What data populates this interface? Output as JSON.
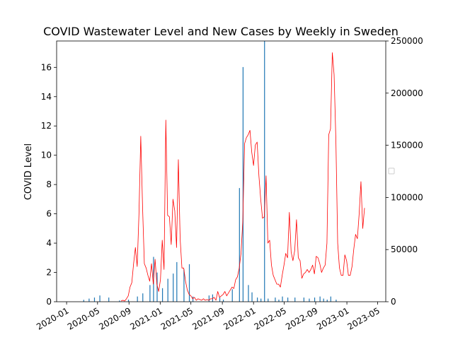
{
  "chart_data": {
    "type": "bar",
    "title": "COVID Wastewater Level and New Cases by Weekly in Sweden",
    "xlabel": "",
    "ylabel": "COVID Level",
    "y2label": "",
    "ylim": [
      0,
      17.8
    ],
    "y2lim": [
      0,
      250000
    ],
    "xlim": [
      "2019-11-23",
      "2023-06-02"
    ],
    "x_ticks": [
      "2020-01",
      "2020-05",
      "2020-09",
      "2021-01",
      "2021-05",
      "2021-09",
      "2022-01",
      "2022-05",
      "2022-09",
      "2023-01",
      "2023-05"
    ],
    "y_ticks": [
      0,
      2,
      4,
      6,
      8,
      10,
      12,
      14,
      16
    ],
    "y2_ticks": [
      0,
      50000,
      100000,
      150000,
      200000,
      250000
    ],
    "legend": "right",
    "colors": {
      "level_line": "#ff0000",
      "cases_bars": "#1f77b4"
    },
    "series": [
      {
        "kind": "line",
        "axis": "left",
        "points": [
          [
            "2020-08-01",
            0.05
          ],
          [
            "2020-08-08",
            0.1
          ],
          [
            "2020-08-15",
            0.05
          ],
          [
            "2020-08-22",
            0.2
          ],
          [
            "2020-08-29",
            0.4
          ],
          [
            "2020-09-05",
            1.0
          ],
          [
            "2020-09-12",
            1.3
          ],
          [
            "2020-09-19",
            2.6
          ],
          [
            "2020-09-26",
            3.7
          ],
          [
            "2020-10-03",
            2.4
          ],
          [
            "2020-10-10",
            6.0
          ],
          [
            "2020-10-17",
            11.3
          ],
          [
            "2020-10-24",
            6.5
          ],
          [
            "2020-10-31",
            2.6
          ],
          [
            "2020-11-07",
            2.3
          ],
          [
            "2020-11-14",
            1.8
          ],
          [
            "2020-11-21",
            1.4
          ],
          [
            "2020-11-28",
            2.6
          ],
          [
            "2020-12-05",
            1.2
          ],
          [
            "2020-12-12",
            2.9
          ],
          [
            "2020-12-19",
            1.2
          ],
          [
            "2020-12-26",
            0.7
          ],
          [
            "2021-01-02",
            1.5
          ],
          [
            "2021-01-09",
            4.2
          ],
          [
            "2021-01-16",
            2.2
          ],
          [
            "2021-01-23",
            12.4
          ],
          [
            "2021-01-30",
            5.9
          ],
          [
            "2021-02-06",
            5.8
          ],
          [
            "2021-02-13",
            3.9
          ],
          [
            "2021-02-20",
            7.0
          ],
          [
            "2021-02-27",
            6.2
          ],
          [
            "2021-03-06",
            3.7
          ],
          [
            "2021-03-13",
            9.7
          ],
          [
            "2021-03-20",
            4.3
          ],
          [
            "2021-03-27",
            2.3
          ],
          [
            "2021-04-03",
            2.3
          ],
          [
            "2021-04-10",
            1.4
          ],
          [
            "2021-04-17",
            0.8
          ],
          [
            "2021-04-24",
            0.5
          ],
          [
            "2021-05-01",
            0.4
          ],
          [
            "2021-05-08",
            0.2
          ],
          [
            "2021-05-15",
            0.3
          ],
          [
            "2021-05-22",
            0.1
          ],
          [
            "2021-05-29",
            0.2
          ],
          [
            "2021-06-05",
            0.15
          ],
          [
            "2021-06-12",
            0.1
          ],
          [
            "2021-06-19",
            0.2
          ],
          [
            "2021-06-26",
            0.1
          ],
          [
            "2021-07-03",
            0.15
          ],
          [
            "2021-07-10",
            0.1
          ],
          [
            "2021-07-17",
            0.2
          ],
          [
            "2021-07-24",
            0.2
          ],
          [
            "2021-07-31",
            0.3
          ],
          [
            "2021-08-07",
            0.1
          ],
          [
            "2021-08-14",
            0.7
          ],
          [
            "2021-08-21",
            0.3
          ],
          [
            "2021-08-28",
            0.4
          ],
          [
            "2021-09-04",
            0.5
          ],
          [
            "2021-09-11",
            0.7
          ],
          [
            "2021-09-18",
            0.4
          ],
          [
            "2021-09-25",
            0.6
          ],
          [
            "2021-10-02",
            0.8
          ],
          [
            "2021-10-09",
            1.0
          ],
          [
            "2021-10-16",
            0.9
          ],
          [
            "2021-10-23",
            1.5
          ],
          [
            "2021-10-30",
            1.7
          ],
          [
            "2021-11-06",
            2.3
          ],
          [
            "2021-11-13",
            3.3
          ],
          [
            "2021-11-20",
            5.5
          ],
          [
            "2021-11-27",
            10.8
          ],
          [
            "2021-12-04",
            11.2
          ],
          [
            "2021-12-11",
            11.4
          ],
          [
            "2021-12-18",
            11.7
          ],
          [
            "2021-12-25",
            10.2
          ],
          [
            "2022-01-01",
            9.3
          ],
          [
            "2022-01-08",
            10.7
          ],
          [
            "2022-01-15",
            10.9
          ],
          [
            "2022-01-22",
            8.6
          ],
          [
            "2022-01-29",
            7.0
          ],
          [
            "2022-02-05",
            5.7
          ],
          [
            "2022-02-12",
            5.8
          ],
          [
            "2022-02-19",
            8.6
          ],
          [
            "2022-02-26",
            4.0
          ],
          [
            "2022-03-05",
            4.2
          ],
          [
            "2022-03-12",
            2.5
          ],
          [
            "2022-03-19",
            1.8
          ],
          [
            "2022-03-26",
            1.5
          ],
          [
            "2022-04-02",
            1.2
          ],
          [
            "2022-04-09",
            1.2
          ],
          [
            "2022-04-16",
            1.0
          ],
          [
            "2022-04-23",
            1.8
          ],
          [
            "2022-04-30",
            2.5
          ],
          [
            "2022-05-07",
            3.3
          ],
          [
            "2022-05-14",
            3.0
          ],
          [
            "2022-05-21",
            6.1
          ],
          [
            "2022-05-28",
            3.4
          ],
          [
            "2022-06-04",
            2.8
          ],
          [
            "2022-06-11",
            3.5
          ],
          [
            "2022-06-18",
            5.6
          ],
          [
            "2022-06-25",
            3.0
          ],
          [
            "2022-07-02",
            2.8
          ],
          [
            "2022-07-09",
            1.6
          ],
          [
            "2022-07-16",
            1.9
          ],
          [
            "2022-07-23",
            2.0
          ],
          [
            "2022-07-30",
            2.2
          ],
          [
            "2022-08-06",
            2.0
          ],
          [
            "2022-08-13",
            2.2
          ],
          [
            "2022-08-20",
            2.5
          ],
          [
            "2022-08-27",
            1.9
          ],
          [
            "2022-09-03",
            3.1
          ],
          [
            "2022-09-10",
            3.0
          ],
          [
            "2022-09-17",
            2.6
          ],
          [
            "2022-09-24",
            2.0
          ],
          [
            "2022-10-01",
            2.3
          ],
          [
            "2022-10-08",
            2.5
          ],
          [
            "2022-10-15",
            4.0
          ],
          [
            "2022-10-22",
            11.4
          ],
          [
            "2022-10-29",
            11.8
          ],
          [
            "2022-11-05",
            17.0
          ],
          [
            "2022-11-12",
            15.5
          ],
          [
            "2022-11-19",
            11.0
          ],
          [
            "2022-11-26",
            4.0
          ],
          [
            "2022-12-03",
            2.3
          ],
          [
            "2022-12-10",
            1.8
          ],
          [
            "2022-12-17",
            1.8
          ],
          [
            "2022-12-24",
            3.2
          ],
          [
            "2022-12-31",
            2.8
          ],
          [
            "2023-01-07",
            1.8
          ],
          [
            "2023-01-14",
            1.8
          ],
          [
            "2023-01-21",
            2.4
          ],
          [
            "2023-01-28",
            3.6
          ],
          [
            "2023-02-04",
            4.6
          ],
          [
            "2023-02-11",
            4.3
          ],
          [
            "2023-02-18",
            6.0
          ],
          [
            "2023-02-25",
            8.2
          ],
          [
            "2023-03-04",
            5.0
          ],
          [
            "2023-03-11",
            6.4
          ]
        ]
      },
      {
        "kind": "bar",
        "axis": "right",
        "points": [
          [
            "2020-03-08",
            1800
          ],
          [
            "2020-03-29",
            3000
          ],
          [
            "2020-04-19",
            4000
          ],
          [
            "2020-05-10",
            6000
          ],
          [
            "2020-06-14",
            4000
          ],
          [
            "2020-07-26",
            1200
          ],
          [
            "2020-08-30",
            2000
          ],
          [
            "2020-10-04",
            5000
          ],
          [
            "2020-10-25",
            8000
          ],
          [
            "2020-11-22",
            16000
          ],
          [
            "2020-12-06",
            43000
          ],
          [
            "2020-12-20",
            28000
          ],
          [
            "2021-01-10",
            13000
          ],
          [
            "2021-01-31",
            22000
          ],
          [
            "2021-02-21",
            27000
          ],
          [
            "2021-03-07",
            38000
          ],
          [
            "2021-04-04",
            31000
          ],
          [
            "2021-04-25",
            36000
          ],
          [
            "2021-05-09",
            5000
          ],
          [
            "2021-07-11",
            6000
          ],
          [
            "2021-07-25",
            7000
          ],
          [
            "2021-08-22",
            4000
          ],
          [
            "2021-09-05",
            2000
          ],
          [
            "2021-10-10",
            12000
          ],
          [
            "2021-11-07",
            109000
          ],
          [
            "2021-11-21",
            225000
          ],
          [
            "2021-12-12",
            16000
          ],
          [
            "2021-12-26",
            9000
          ],
          [
            "2022-01-16",
            4000
          ],
          [
            "2022-01-30",
            3000
          ],
          [
            "2022-02-13",
            250000
          ],
          [
            "2022-02-27",
            3000
          ],
          [
            "2022-03-27",
            4000
          ],
          [
            "2022-04-10",
            2000
          ],
          [
            "2022-04-24",
            5000
          ],
          [
            "2022-05-15",
            4000
          ],
          [
            "2022-06-12",
            4000
          ],
          [
            "2022-07-17",
            4000
          ],
          [
            "2022-08-07",
            3000
          ],
          [
            "2022-08-28",
            4000
          ],
          [
            "2022-09-18",
            5000
          ],
          [
            "2022-10-02",
            3000
          ],
          [
            "2022-10-16",
            2000
          ],
          [
            "2022-10-30",
            5000
          ],
          [
            "2022-11-20",
            2000
          ]
        ]
      }
    ]
  }
}
